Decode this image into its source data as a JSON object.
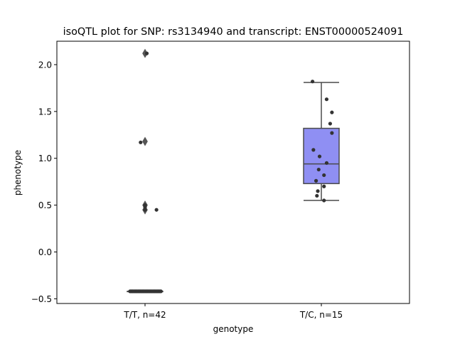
{
  "chart_data": {
    "type": "box",
    "title": "isoQTL plot for SNP: rs3134940 and transcript: ENST00000524091",
    "xlabel": "genotype",
    "ylabel": "phenotype",
    "ylim": [
      -0.55,
      2.25
    ],
    "yticks": [
      -0.5,
      0.0,
      0.5,
      1.0,
      1.5,
      2.0
    ],
    "yticklabels": [
      "−0.5",
      "0.0",
      "0.5",
      "1.0",
      "1.5",
      "2.0"
    ],
    "categories": [
      "T/T, n=42",
      "T/C, n=15"
    ],
    "grid": false,
    "groups": [
      {
        "category": "T/T, n=42",
        "color": "#9b9bf5",
        "box": {
          "q1": -0.42,
          "median": -0.42,
          "q3": -0.42,
          "whisker_low": -0.42,
          "whisker_high": -0.42
        },
        "outliers": [
          2.12,
          1.18,
          0.5,
          0.45
        ],
        "points": [
          {
            "x": -0.16,
            "y": -0.42
          },
          {
            "x": -0.14,
            "y": -0.42
          },
          {
            "x": -0.12,
            "y": -0.42
          },
          {
            "x": -0.1,
            "y": -0.42
          },
          {
            "x": -0.08,
            "y": -0.42
          },
          {
            "x": -0.06,
            "y": -0.42
          },
          {
            "x": -0.05,
            "y": -0.42
          },
          {
            "x": -0.04,
            "y": -0.42
          },
          {
            "x": -0.02,
            "y": -0.42
          },
          {
            "x": 0.0,
            "y": -0.42
          },
          {
            "x": 0.02,
            "y": -0.42
          },
          {
            "x": 0.04,
            "y": -0.42
          },
          {
            "x": 0.05,
            "y": -0.42
          },
          {
            "x": 0.07,
            "y": -0.42
          },
          {
            "x": 0.09,
            "y": -0.42
          },
          {
            "x": 0.11,
            "y": -0.42
          },
          {
            "x": 0.13,
            "y": -0.42
          },
          {
            "x": 0.15,
            "y": -0.42
          },
          {
            "x": -0.15,
            "y": -0.42
          },
          {
            "x": -0.03,
            "y": -0.42
          },
          {
            "x": 0.1,
            "y": -0.42
          },
          {
            "x": 0.16,
            "y": -0.42
          },
          {
            "x": -0.11,
            "y": -0.42
          },
          {
            "x": 0.03,
            "y": -0.42
          },
          {
            "x": 0.06,
            "y": -0.42
          },
          {
            "x": -0.07,
            "y": -0.42
          },
          {
            "x": 0.12,
            "y": -0.42
          },
          {
            "x": -0.09,
            "y": -0.42
          },
          {
            "x": 0.01,
            "y": -0.42
          },
          {
            "x": 0.14,
            "y": -0.42
          },
          {
            "x": -0.13,
            "y": -0.42
          },
          {
            "x": 0.08,
            "y": -0.42
          },
          {
            "x": -0.01,
            "y": -0.42
          },
          {
            "x": 0.17,
            "y": -0.42
          },
          {
            "x": -0.17,
            "y": -0.42
          },
          {
            "x": 0.18,
            "y": -0.42
          },
          {
            "x": 0.02,
            "y": 2.12
          },
          {
            "x": -0.05,
            "y": 1.17
          },
          {
            "x": 0.0,
            "y": 0.48
          },
          {
            "x": 0.0,
            "y": 0.5
          },
          {
            "x": 0.0,
            "y": 0.45
          },
          {
            "x": 0.13,
            "y": 0.45
          }
        ]
      },
      {
        "category": "T/C, n=15",
        "color": "#8f8ff3",
        "box": {
          "q1": 0.73,
          "median": 0.94,
          "q3": 1.32,
          "whisker_low": 0.55,
          "whisker_high": 1.81
        },
        "outliers": [],
        "points": [
          {
            "x": -0.1,
            "y": 1.82
          },
          {
            "x": 0.06,
            "y": 1.63
          },
          {
            "x": 0.12,
            "y": 1.49
          },
          {
            "x": 0.1,
            "y": 1.37
          },
          {
            "x": 0.12,
            "y": 1.27
          },
          {
            "x": -0.09,
            "y": 1.09
          },
          {
            "x": -0.02,
            "y": 1.02
          },
          {
            "x": 0.06,
            "y": 0.95
          },
          {
            "x": -0.03,
            "y": 0.88
          },
          {
            "x": 0.03,
            "y": 0.82
          },
          {
            "x": -0.06,
            "y": 0.76
          },
          {
            "x": 0.03,
            "y": 0.7
          },
          {
            "x": -0.04,
            "y": 0.65
          },
          {
            "x": -0.05,
            "y": 0.6
          },
          {
            "x": 0.03,
            "y": 0.55
          }
        ]
      }
    ]
  }
}
